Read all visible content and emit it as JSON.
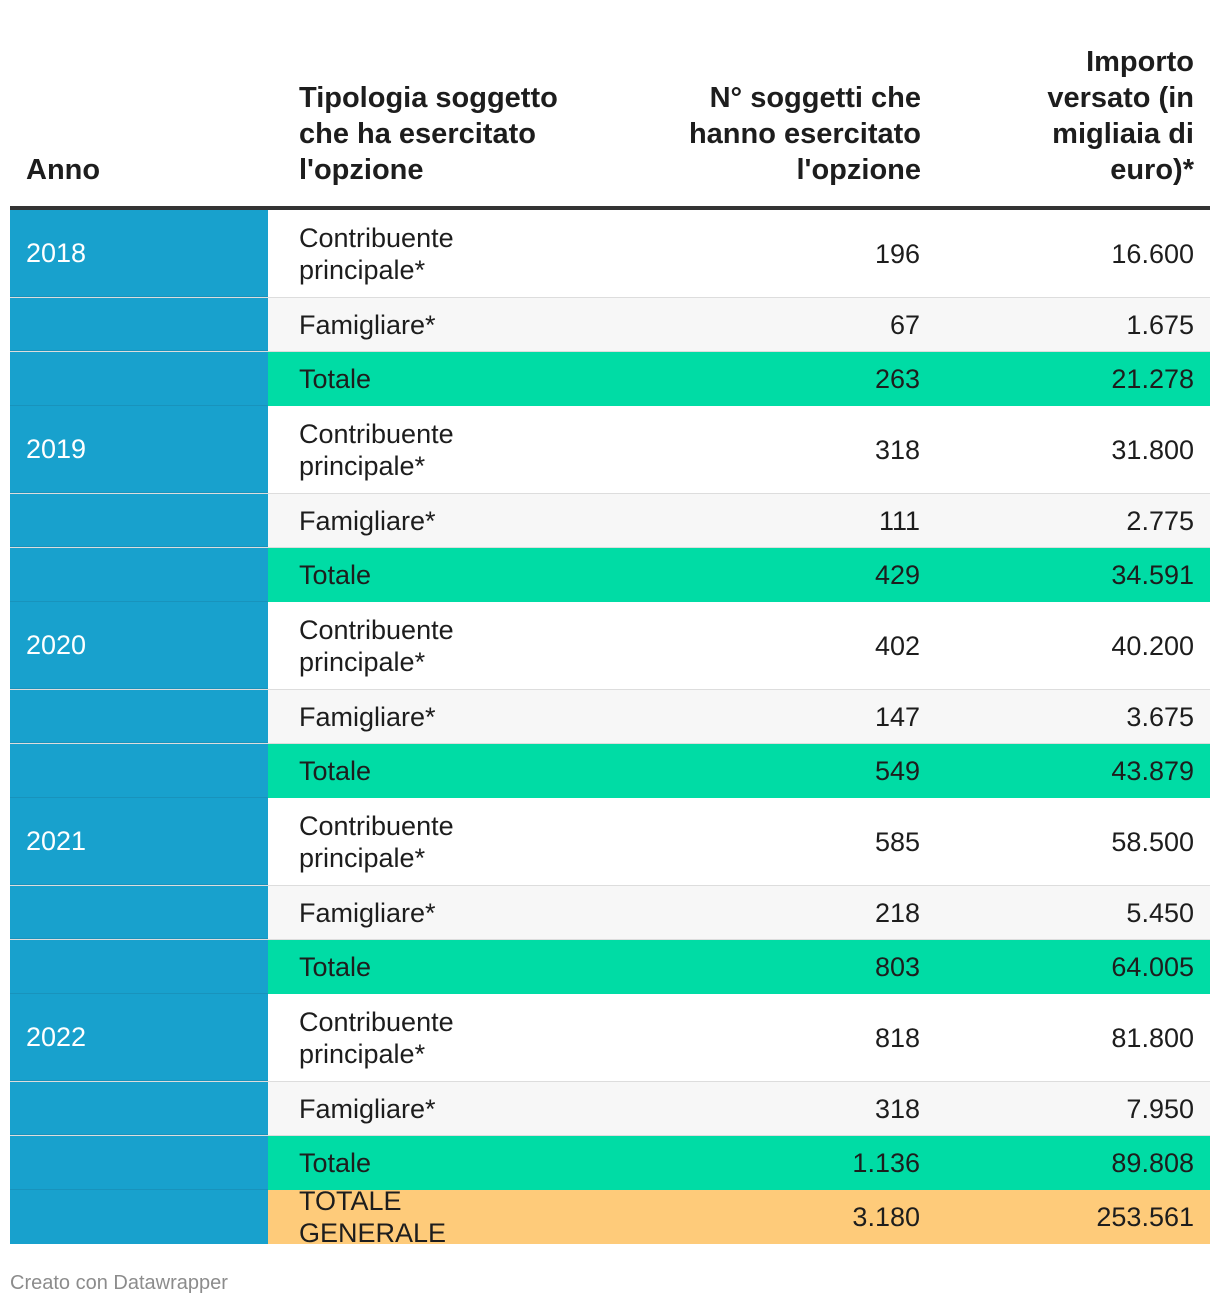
{
  "chart_data": {
    "type": "table",
    "title": "",
    "columns": [
      "Anno",
      "Tipologia soggetto che ha esercitato l'opzione",
      "N° soggetti che hanno esercitato l'opzione",
      "Importo versato (in migliaia di euro)*"
    ],
    "rows": [
      {
        "year": "2018",
        "type": "Contribuente principale*",
        "count": "196",
        "amount": "16.600",
        "kind": "data"
      },
      {
        "year": "",
        "type": "Famigliare*",
        "count": "67",
        "amount": "1.675",
        "kind": "data"
      },
      {
        "year": "",
        "type": "Totale",
        "count": "263",
        "amount": "21.278",
        "kind": "total"
      },
      {
        "year": "2019",
        "type": "Contribuente principale*",
        "count": "318",
        "amount": "31.800",
        "kind": "data"
      },
      {
        "year": "",
        "type": "Famigliare*",
        "count": "111",
        "amount": "2.775",
        "kind": "data"
      },
      {
        "year": "",
        "type": "Totale",
        "count": "429",
        "amount": "34.591",
        "kind": "total"
      },
      {
        "year": "2020",
        "type": "Contribuente principale*",
        "count": "402",
        "amount": "40.200",
        "kind": "data"
      },
      {
        "year": "",
        "type": "Famigliare*",
        "count": "147",
        "amount": "3.675",
        "kind": "data"
      },
      {
        "year": "",
        "type": "Totale",
        "count": "549",
        "amount": "43.879",
        "kind": "total"
      },
      {
        "year": "2021",
        "type": "Contribuente principale*",
        "count": "585",
        "amount": "58.500",
        "kind": "data"
      },
      {
        "year": "",
        "type": "Famigliare*",
        "count": "218",
        "amount": "5.450",
        "kind": "data"
      },
      {
        "year": "",
        "type": "Totale",
        "count": "803",
        "amount": "64.005",
        "kind": "total"
      },
      {
        "year": "2022",
        "type": "Contribuente principale*",
        "count": "818",
        "amount": "81.800",
        "kind": "data"
      },
      {
        "year": "",
        "type": "Famigliare*",
        "count": "318",
        "amount": "7.950",
        "kind": "data"
      },
      {
        "year": "",
        "type": "Totale",
        "count": "1.136",
        "amount": "89.808",
        "kind": "total"
      },
      {
        "year": "",
        "type": "TOTALE GENERALE",
        "count": "3.180",
        "amount": "253.561",
        "kind": "grand"
      }
    ]
  },
  "colors": {
    "year_column": "#18a1cd",
    "total_row": "#00dca5",
    "grand_total_row": "#fecb7a",
    "striped_row": "#f7f7f7"
  },
  "footer": {
    "credit": "Creato con Datawrapper"
  }
}
